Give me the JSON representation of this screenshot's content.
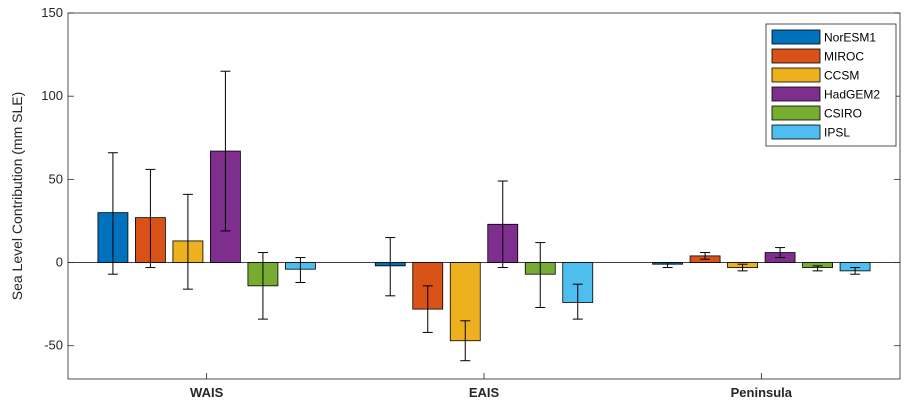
{
  "chart_data": {
    "type": "bar",
    "title": "",
    "xlabel": "",
    "ylabel": "Sea Level Contribution (mm SLE)",
    "ylim": [
      -70,
      150
    ],
    "yticks": [
      -50,
      0,
      50,
      100,
      150
    ],
    "grid": false,
    "legend_position": "top-right",
    "categories": [
      "WAIS",
      "EAIS",
      "Peninsula"
    ],
    "series": [
      {
        "name": "NorESM1",
        "color": "#0072BD",
        "values": [
          30,
          -2,
          -1
        ],
        "err_low": [
          -7,
          -20,
          -3
        ],
        "err_high": [
          66,
          15,
          0
        ]
      },
      {
        "name": "MIROC",
        "color": "#D95319",
        "values": [
          27,
          -28,
          4
        ],
        "err_low": [
          -3,
          -42,
          2
        ],
        "err_high": [
          56,
          -14,
          6
        ]
      },
      {
        "name": "CCSM",
        "color": "#EDB120",
        "values": [
          13,
          -47,
          -3
        ],
        "err_low": [
          -16,
          -59,
          -5
        ],
        "err_high": [
          41,
          -35,
          -1
        ]
      },
      {
        "name": "HadGEM2",
        "color": "#7E2F8E",
        "values": [
          67,
          23,
          6
        ],
        "err_low": [
          19,
          -3,
          3
        ],
        "err_high": [
          115,
          49,
          9
        ]
      },
      {
        "name": "CSIRO",
        "color": "#77AC30",
        "values": [
          -14,
          -7,
          -3
        ],
        "err_low": [
          -34,
          -27,
          -5
        ],
        "err_high": [
          6,
          12,
          -2
        ]
      },
      {
        "name": "IPSL",
        "color": "#4DBEEE",
        "values": [
          -4,
          -24,
          -5
        ],
        "err_low": [
          -12,
          -34,
          -7
        ],
        "err_high": [
          3,
          -13,
          -3
        ]
      }
    ]
  }
}
